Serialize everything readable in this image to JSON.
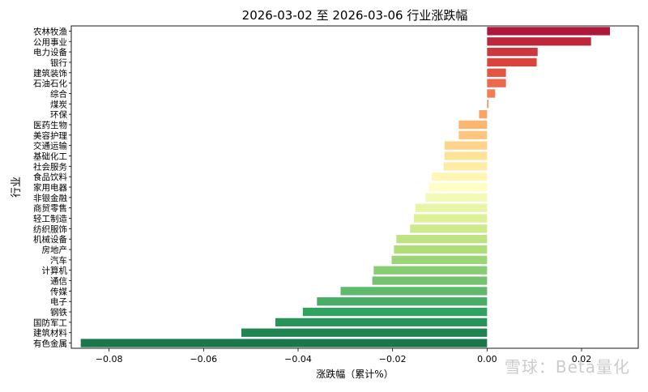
{
  "chart_data": {
    "type": "bar",
    "orientation": "horizontal",
    "title": "2026-03-02 至 2026-03-06 行业涨跌幅",
    "xlabel": "涨跌幅（累计%）",
    "ylabel": "行业",
    "xlim": [
      -0.088,
      0.032
    ],
    "xticks": [
      -0.08,
      -0.06,
      -0.04,
      -0.02,
      0.0,
      0.02
    ],
    "xtick_labels": [
      "−0.08",
      "−0.06",
      "−0.04",
      "−0.02",
      "0.00",
      "0.02"
    ],
    "grid": false,
    "colormap": "RdYlGn_r",
    "categories": [
      "农林牧渔",
      "公用事业",
      "电力设备",
      "银行",
      "建筑装饰",
      "石油石化",
      "综合",
      "煤炭",
      "环保",
      "医药生物",
      "美容护理",
      "交通运输",
      "基础化工",
      "社会服务",
      "食品饮料",
      "家用电器",
      "非银金融",
      "商贸零售",
      "轻工制造",
      "纺织服饰",
      "机械设备",
      "房地产",
      "汽车",
      "计算机",
      "通信",
      "传媒",
      "电子",
      "钢铁",
      "国防军工",
      "建筑材料",
      "有色金属"
    ],
    "values": [
      0.026,
      0.022,
      0.0107,
      0.0105,
      0.004,
      0.004,
      0.0017,
      0.0003,
      -0.0017,
      -0.006,
      -0.006,
      -0.009,
      -0.009,
      -0.0092,
      -0.0117,
      -0.0123,
      -0.013,
      -0.0152,
      -0.0155,
      -0.0163,
      -0.0192,
      -0.0197,
      -0.0202,
      -0.024,
      -0.0243,
      -0.031,
      -0.036,
      -0.039,
      -0.0448,
      -0.052,
      -0.086
    ]
  },
  "watermark": "雪球：Beta量化"
}
